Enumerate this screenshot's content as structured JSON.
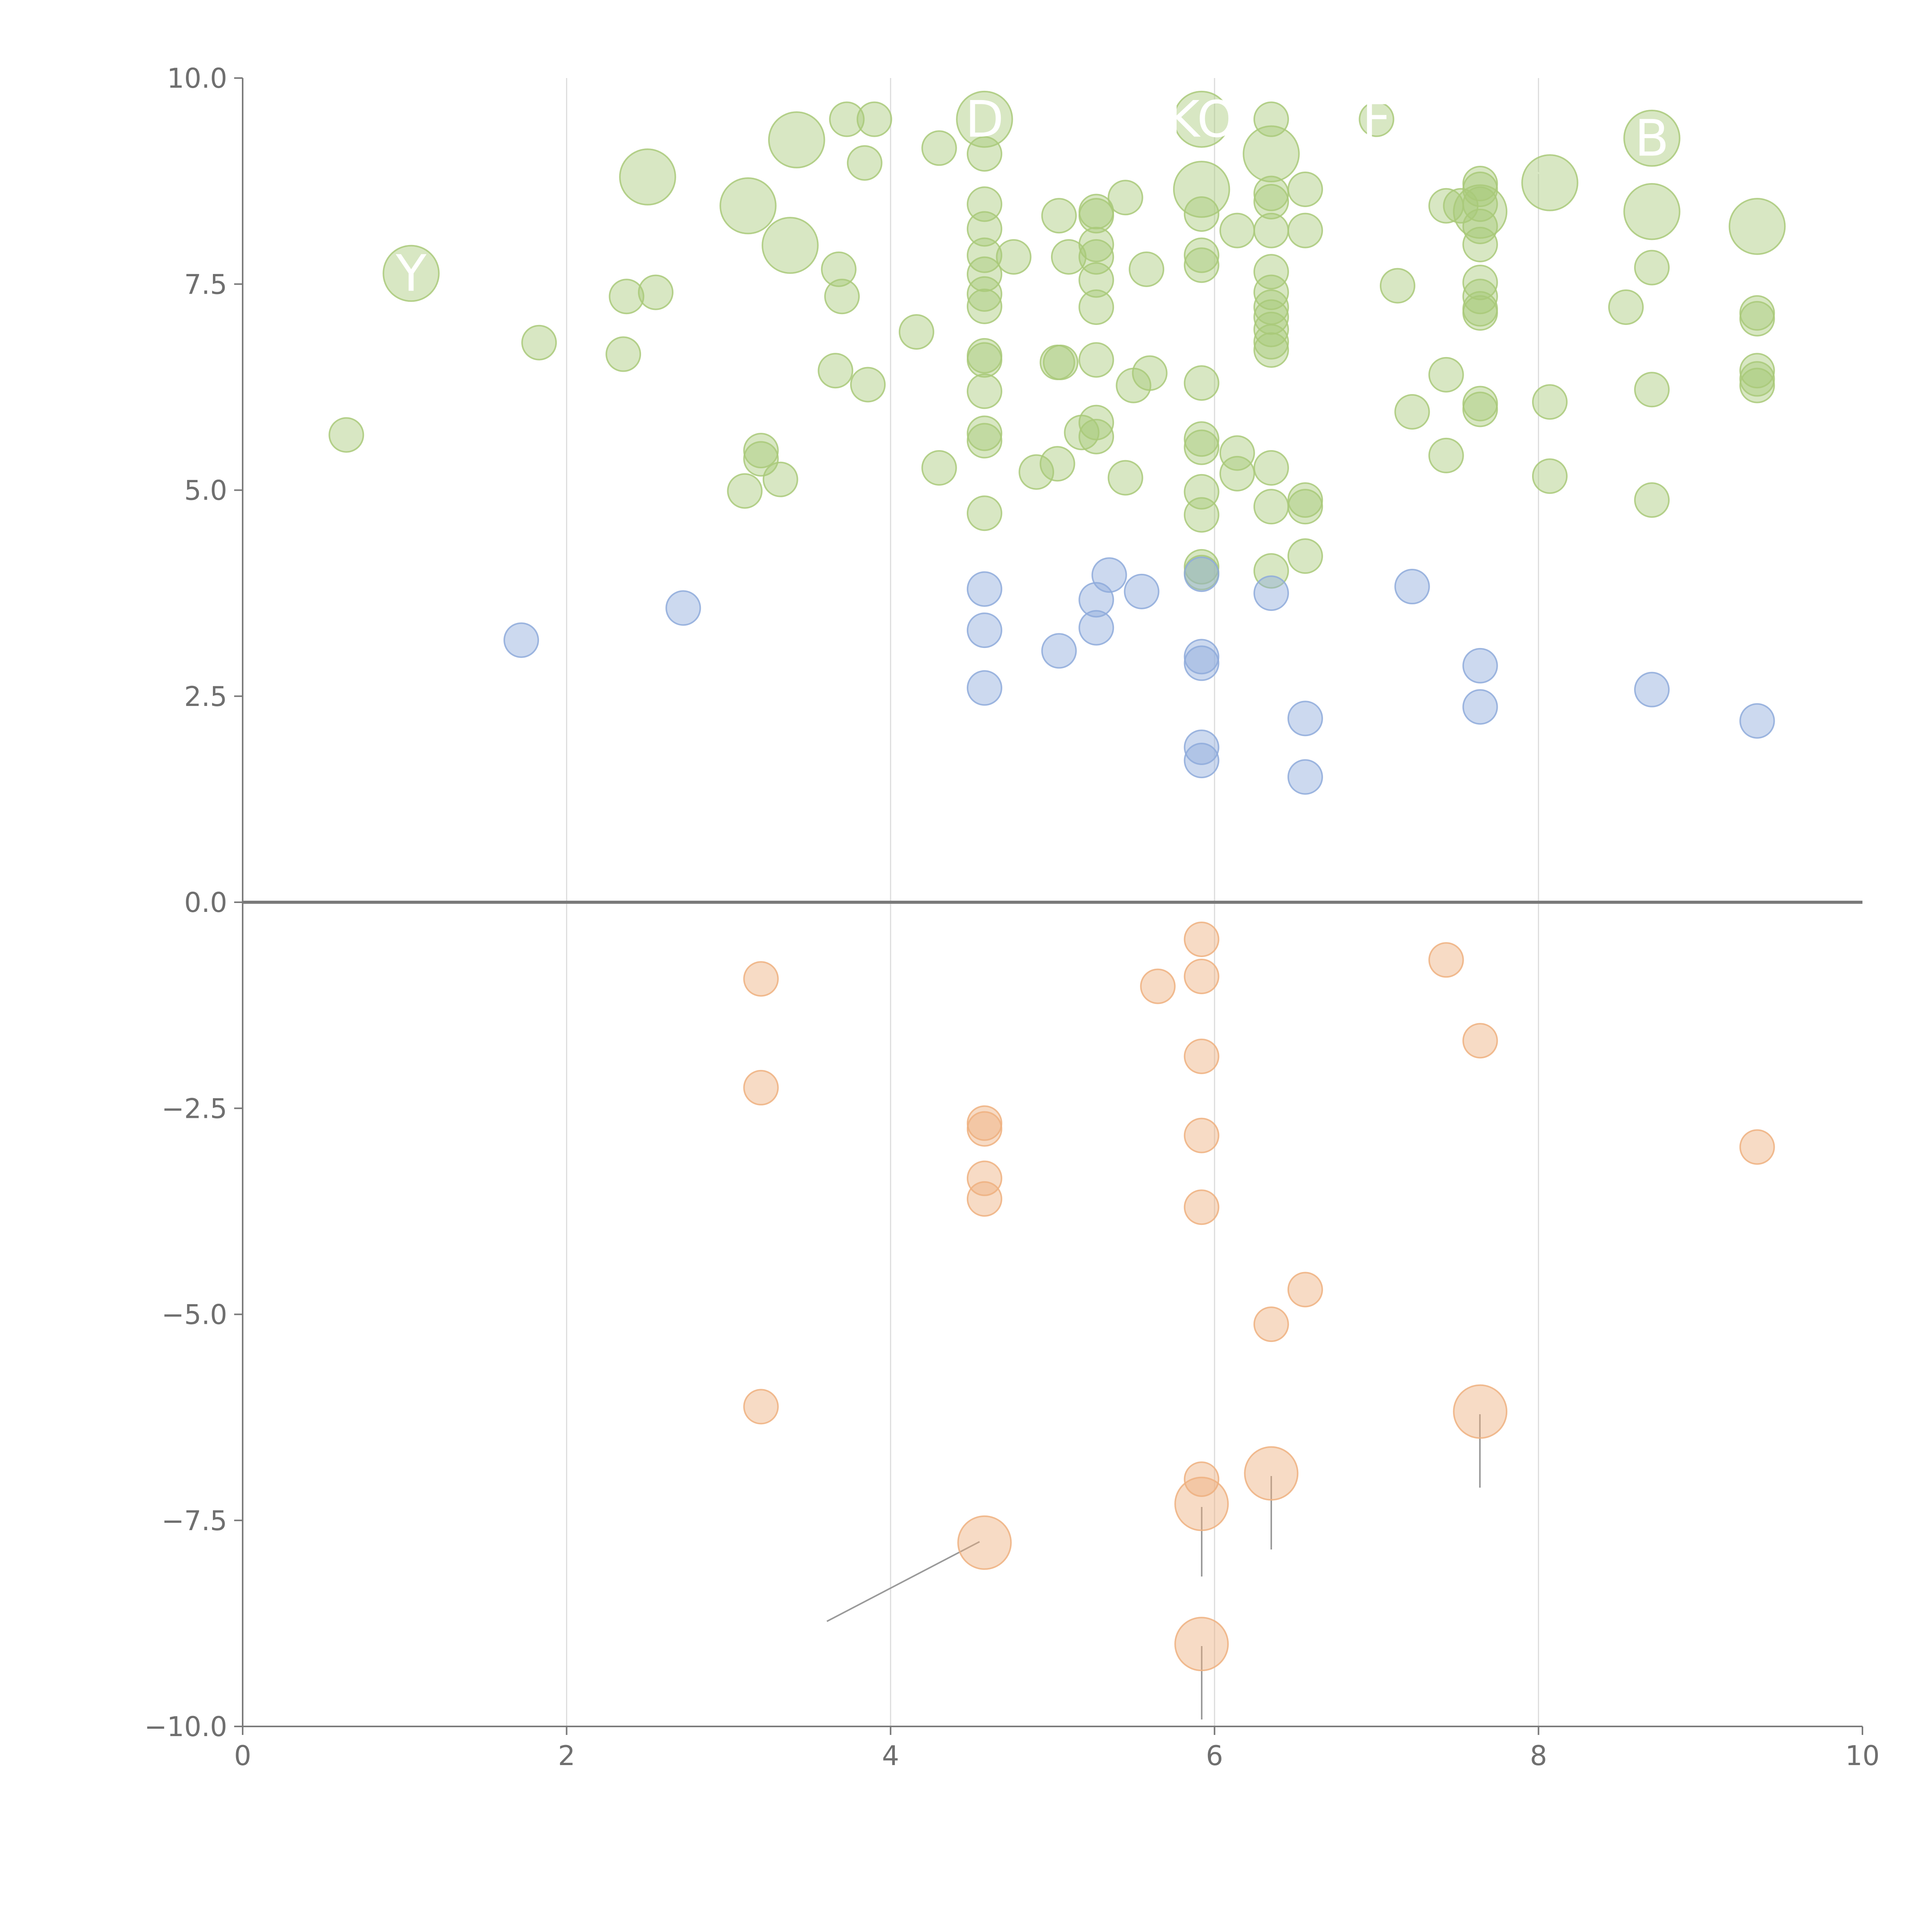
{
  "chart_data": {
    "type": "scatter",
    "title": "",
    "xlabel": "",
    "ylabel": "",
    "xlim": [
      0,
      10
    ],
    "ylim": [
      -10,
      10
    ],
    "x_ticks": [
      "0",
      "2",
      "4",
      "6",
      "8",
      "10"
    ],
    "y_ticks": [
      "10.0",
      "7.5",
      "5.0",
      "2.5",
      "0.0",
      "−2.5",
      "−5.0",
      "−7.5",
      "−10.0"
    ],
    "grid": "vertical",
    "zero_line": true,
    "series": [
      {
        "color": "#a9c979",
        "points": [
          {
            "x": 0.64,
            "y": 5.67,
            "s": 1
          },
          {
            "x": 1.04,
            "y": 7.63,
            "s": 2.2,
            "label": "Y"
          },
          {
            "x": 1.83,
            "y": 6.79,
            "s": 1
          },
          {
            "x": 2.35,
            "y": 6.65,
            "s": 1
          },
          {
            "x": 2.37,
            "y": 7.35,
            "s": 1
          },
          {
            "x": 2.55,
            "y": 7.4,
            "s": 1
          },
          {
            "x": 2.5,
            "y": 8.8,
            "s": 2.2
          },
          {
            "x": 3.1,
            "y": 4.99,
            "s": 1
          },
          {
            "x": 3.2,
            "y": 5.38,
            "s": 1
          },
          {
            "x": 3.2,
            "y": 5.48,
            "s": 1
          },
          {
            "x": 3.32,
            "y": 5.13,
            "s": 1
          },
          {
            "x": 3.12,
            "y": 8.45,
            "s": 2.2
          },
          {
            "x": 3.38,
            "y": 7.97,
            "s": 2.2
          },
          {
            "x": 3.42,
            "y": 9.25,
            "s": 2.2
          },
          {
            "x": 3.66,
            "y": 6.45,
            "s": 1
          },
          {
            "x": 3.7,
            "y": 7.35,
            "s": 1
          },
          {
            "x": 3.68,
            "y": 7.68,
            "s": 1
          },
          {
            "x": 3.73,
            "y": 9.5,
            "s": 1
          },
          {
            "x": 3.84,
            "y": 8.97,
            "s": 1
          },
          {
            "x": 3.9,
            "y": 9.5,
            "s": 1
          },
          {
            "x": 3.86,
            "y": 6.28,
            "s": 1
          },
          {
            "x": 4.16,
            "y": 6.92,
            "s": 1
          },
          {
            "x": 4.3,
            "y": 5.27,
            "s": 1
          },
          {
            "x": 4.3,
            "y": 9.15,
            "s": 1
          },
          {
            "x": 4.58,
            "y": 4.72,
            "s": 1
          },
          {
            "x": 4.58,
            "y": 5.6,
            "s": 1
          },
          {
            "x": 4.58,
            "y": 5.69,
            "s": 1
          },
          {
            "x": 4.58,
            "y": 6.2,
            "s": 1
          },
          {
            "x": 4.58,
            "y": 6.58,
            "s": 1
          },
          {
            "x": 4.58,
            "y": 6.63,
            "s": 1
          },
          {
            "x": 4.58,
            "y": 7.23,
            "s": 1
          },
          {
            "x": 4.58,
            "y": 7.38,
            "s": 1
          },
          {
            "x": 4.58,
            "y": 7.62,
            "s": 1
          },
          {
            "x": 4.58,
            "y": 7.85,
            "s": 1
          },
          {
            "x": 4.58,
            "y": 8.17,
            "s": 1
          },
          {
            "x": 4.58,
            "y": 8.47,
            "s": 1
          },
          {
            "x": 4.58,
            "y": 9.08,
            "s": 1
          },
          {
            "x": 4.58,
            "y": 9.5,
            "s": 2.2,
            "label": "D"
          },
          {
            "x": 4.76,
            "y": 7.83,
            "s": 1
          },
          {
            "x": 4.9,
            "y": 5.22,
            "s": 1
          },
          {
            "x": 5.03,
            "y": 5.32,
            "s": 1
          },
          {
            "x": 5.03,
            "y": 6.55,
            "s": 1
          },
          {
            "x": 5.05,
            "y": 6.55,
            "s": 1
          },
          {
            "x": 5.04,
            "y": 8.33,
            "s": 1
          },
          {
            "x": 5.1,
            "y": 7.83,
            "s": 1
          },
          {
            "x": 5.18,
            "y": 5.7,
            "s": 1
          },
          {
            "x": 5.27,
            "y": 5.65,
            "s": 1
          },
          {
            "x": 5.27,
            "y": 5.82,
            "s": 1
          },
          {
            "x": 5.27,
            "y": 6.58,
            "s": 1
          },
          {
            "x": 5.27,
            "y": 7.22,
            "s": 1
          },
          {
            "x": 5.27,
            "y": 7.55,
            "s": 1
          },
          {
            "x": 5.27,
            "y": 7.83,
            "s": 1
          },
          {
            "x": 5.27,
            "y": 7.98,
            "s": 1
          },
          {
            "x": 5.27,
            "y": 8.33,
            "s": 1
          },
          {
            "x": 5.27,
            "y": 8.38,
            "s": 1
          },
          {
            "x": 5.45,
            "y": 5.15,
            "s": 1
          },
          {
            "x": 5.45,
            "y": 8.55,
            "s": 1
          },
          {
            "x": 5.5,
            "y": 6.27,
            "s": 1
          },
          {
            "x": 5.6,
            "y": 6.42,
            "s": 1
          },
          {
            "x": 5.58,
            "y": 7.68,
            "s": 1
          },
          {
            "x": 5.92,
            "y": 4.0,
            "s": 1
          },
          {
            "x": 5.92,
            "y": 4.07,
            "s": 1
          },
          {
            "x": 5.92,
            "y": 4.7,
            "s": 1
          },
          {
            "x": 5.92,
            "y": 4.98,
            "s": 1
          },
          {
            "x": 5.92,
            "y": 5.52,
            "s": 1
          },
          {
            "x": 5.92,
            "y": 5.62,
            "s": 1
          },
          {
            "x": 5.92,
            "y": 6.3,
            "s": 1
          },
          {
            "x": 5.92,
            "y": 7.73,
            "s": 1
          },
          {
            "x": 5.92,
            "y": 7.85,
            "s": 1
          },
          {
            "x": 5.92,
            "y": 8.35,
            "s": 1
          },
          {
            "x": 5.92,
            "y": 8.65,
            "s": 2.2
          },
          {
            "x": 5.92,
            "y": 9.5,
            "s": 2.2,
            "label": "KO"
          },
          {
            "x": 6.14,
            "y": 5.2,
            "s": 1
          },
          {
            "x": 6.14,
            "y": 5.45,
            "s": 1
          },
          {
            "x": 6.14,
            "y": 8.15,
            "s": 1
          },
          {
            "x": 6.35,
            "y": 4.02,
            "s": 1
          },
          {
            "x": 6.35,
            "y": 4.8,
            "s": 1
          },
          {
            "x": 6.35,
            "y": 5.27,
            "s": 1
          },
          {
            "x": 6.35,
            "y": 6.7,
            "s": 1
          },
          {
            "x": 6.35,
            "y": 6.8,
            "s": 1
          },
          {
            "x": 6.35,
            "y": 6.95,
            "s": 1
          },
          {
            "x": 6.35,
            "y": 7.1,
            "s": 1
          },
          {
            "x": 6.35,
            "y": 7.22,
            "s": 1
          },
          {
            "x": 6.35,
            "y": 7.4,
            "s": 1
          },
          {
            "x": 6.35,
            "y": 7.65,
            "s": 1
          },
          {
            "x": 6.35,
            "y": 8.15,
            "s": 1
          },
          {
            "x": 6.35,
            "y": 8.5,
            "s": 1
          },
          {
            "x": 6.35,
            "y": 8.6,
            "s": 1
          },
          {
            "x": 6.35,
            "y": 9.5,
            "s": 1
          },
          {
            "x": 6.35,
            "y": 9.08,
            "s": 2.2
          },
          {
            "x": 6.56,
            "y": 4.2,
            "s": 1
          },
          {
            "x": 6.56,
            "y": 4.8,
            "s": 1
          },
          {
            "x": 6.56,
            "y": 4.88,
            "s": 1
          },
          {
            "x": 6.56,
            "y": 8.15,
            "s": 1
          },
          {
            "x": 6.56,
            "y": 8.65,
            "s": 1
          },
          {
            "x": 7.0,
            "y": 9.5,
            "s": 1,
            "label": "F"
          },
          {
            "x": 7.13,
            "y": 7.48,
            "s": 1
          },
          {
            "x": 7.22,
            "y": 5.95,
            "s": 1
          },
          {
            "x": 7.43,
            "y": 5.42,
            "s": 1
          },
          {
            "x": 7.43,
            "y": 6.4,
            "s": 1
          },
          {
            "x": 7.43,
            "y": 8.45,
            "s": 1
          },
          {
            "x": 7.52,
            "y": 8.45,
            "s": 1
          },
          {
            "x": 7.64,
            "y": 5.98,
            "s": 1
          },
          {
            "x": 7.64,
            "y": 6.05,
            "s": 1
          },
          {
            "x": 7.64,
            "y": 7.15,
            "s": 1
          },
          {
            "x": 7.64,
            "y": 7.2,
            "s": 1
          },
          {
            "x": 7.64,
            "y": 7.35,
            "s": 1
          },
          {
            "x": 7.64,
            "y": 7.52,
            "s": 1
          },
          {
            "x": 7.64,
            "y": 7.98,
            "s": 1
          },
          {
            "x": 7.64,
            "y": 8.2,
            "s": 1
          },
          {
            "x": 7.64,
            "y": 8.47,
            "s": 1
          },
          {
            "x": 7.64,
            "y": 8.65,
            "s": 1
          },
          {
            "x": 7.64,
            "y": 8.72,
            "s": 1
          },
          {
            "x": 7.64,
            "y": 8.38,
            "s": 2
          },
          {
            "x": 8.07,
            "y": 5.17,
            "s": 1
          },
          {
            "x": 8.07,
            "y": 6.07,
            "s": 1
          },
          {
            "x": 8.07,
            "y": 8.73,
            "s": 2.2
          },
          {
            "x": 8.54,
            "y": 7.22,
            "s": 1
          },
          {
            "x": 8.7,
            "y": 4.88,
            "s": 1
          },
          {
            "x": 8.7,
            "y": 6.22,
            "s": 1
          },
          {
            "x": 8.7,
            "y": 7.7,
            "s": 1
          },
          {
            "x": 8.7,
            "y": 8.38,
            "s": 2.2
          },
          {
            "x": 8.7,
            "y": 9.27,
            "s": 2.2,
            "label": "B"
          },
          {
            "x": 9.35,
            "y": 6.27,
            "s": 1
          },
          {
            "x": 9.35,
            "y": 6.35,
            "s": 1
          },
          {
            "x": 9.35,
            "y": 6.45,
            "s": 1
          },
          {
            "x": 9.35,
            "y": 7.08,
            "s": 1
          },
          {
            "x": 9.35,
            "y": 7.15,
            "s": 1
          },
          {
            "x": 9.35,
            "y": 8.2,
            "s": 2.2
          }
        ]
      },
      {
        "color": "#8eaadb",
        "points": [
          {
            "x": 1.72,
            "y": 3.18,
            "s": 1
          },
          {
            "x": 2.72,
            "y": 3.57,
            "s": 1
          },
          {
            "x": 4.58,
            "y": 2.6,
            "s": 1
          },
          {
            "x": 4.58,
            "y": 3.3,
            "s": 1
          },
          {
            "x": 4.58,
            "y": 3.8,
            "s": 1
          },
          {
            "x": 5.04,
            "y": 3.05,
            "s": 1
          },
          {
            "x": 5.27,
            "y": 3.33,
            "s": 1
          },
          {
            "x": 5.27,
            "y": 3.67,
            "s": 1
          },
          {
            "x": 5.35,
            "y": 3.97,
            "s": 1
          },
          {
            "x": 5.55,
            "y": 3.77,
            "s": 1
          },
          {
            "x": 5.92,
            "y": 1.72,
            "s": 1
          },
          {
            "x": 5.92,
            "y": 1.88,
            "s": 1
          },
          {
            "x": 5.92,
            "y": 2.9,
            "s": 1
          },
          {
            "x": 5.92,
            "y": 2.98,
            "s": 1
          },
          {
            "x": 5.92,
            "y": 3.98,
            "s": 1
          },
          {
            "x": 6.35,
            "y": 3.75,
            "s": 1
          },
          {
            "x": 6.56,
            "y": 1.52,
            "s": 1
          },
          {
            "x": 6.56,
            "y": 2.23,
            "s": 1
          },
          {
            "x": 7.22,
            "y": 3.83,
            "s": 1
          },
          {
            "x": 7.64,
            "y": 2.37,
            "s": 1
          },
          {
            "x": 7.64,
            "y": 2.87,
            "s": 1
          },
          {
            "x": 8.7,
            "y": 2.58,
            "s": 1
          },
          {
            "x": 9.35,
            "y": 2.2,
            "s": 1
          }
        ]
      },
      {
        "color": "#eeb07f",
        "points": [
          {
            "x": 3.2,
            "y": -0.93,
            "s": 1
          },
          {
            "x": 3.2,
            "y": -2.25,
            "s": 1
          },
          {
            "x": 3.2,
            "y": -6.12,
            "s": 1
          },
          {
            "x": 4.58,
            "y": -2.68,
            "s": 1
          },
          {
            "x": 4.58,
            "y": -2.75,
            "s": 1
          },
          {
            "x": 4.58,
            "y": -3.35,
            "s": 1
          },
          {
            "x": 4.58,
            "y": -3.6,
            "s": 1
          },
          {
            "x": 4.58,
            "y": -7.77,
            "s": 2
          },
          {
            "x": 5.65,
            "y": -1.02,
            "s": 1
          },
          {
            "x": 5.92,
            "y": -0.45,
            "s": 1
          },
          {
            "x": 5.92,
            "y": -0.9,
            "s": 1
          },
          {
            "x": 5.92,
            "y": -1.87,
            "s": 1
          },
          {
            "x": 5.92,
            "y": -2.83,
            "s": 1
          },
          {
            "x": 5.92,
            "y": -3.7,
            "s": 1
          },
          {
            "x": 5.92,
            "y": -7.0,
            "s": 1
          },
          {
            "x": 5.92,
            "y": -7.3,
            "s": 2
          },
          {
            "x": 5.92,
            "y": -9.0,
            "s": 2
          },
          {
            "x": 6.35,
            "y": -5.12,
            "s": 1
          },
          {
            "x": 6.35,
            "y": -6.93,
            "s": 2
          },
          {
            "x": 6.56,
            "y": -4.7,
            "s": 1
          },
          {
            "x": 7.43,
            "y": -0.7,
            "s": 1
          },
          {
            "x": 7.64,
            "y": -1.68,
            "s": 1
          },
          {
            "x": 7.64,
            "y": -6.18,
            "s": 2
          },
          {
            "x": 9.35,
            "y": -2.97,
            "s": 1
          }
        ]
      }
    ]
  }
}
